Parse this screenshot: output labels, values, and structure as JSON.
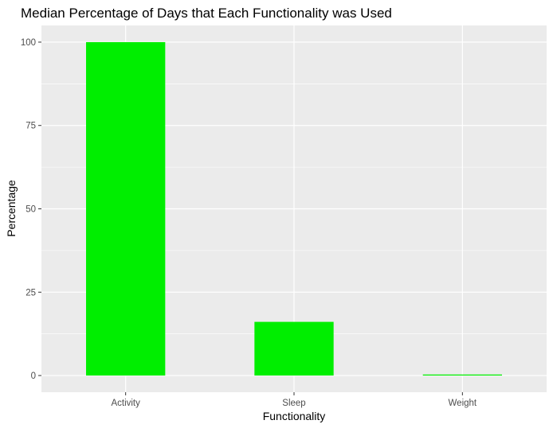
{
  "chart_data": {
    "type": "bar",
    "title": "Median Percentage of Days that Each Functionality was Used",
    "xlabel": "Functionality",
    "ylabel": "Percentage",
    "categories": [
      "Activity",
      "Sleep",
      "Weight"
    ],
    "values": [
      100,
      16.1,
      0.3
    ],
    "ylim": [
      -5,
      105
    ],
    "yticks": [
      0,
      25,
      50,
      75,
      100
    ],
    "grid": true,
    "bar_color": "#00EE00",
    "panel_background": "#EBEBEB",
    "gridline_color": "#FFFFFF",
    "legend": "none"
  }
}
